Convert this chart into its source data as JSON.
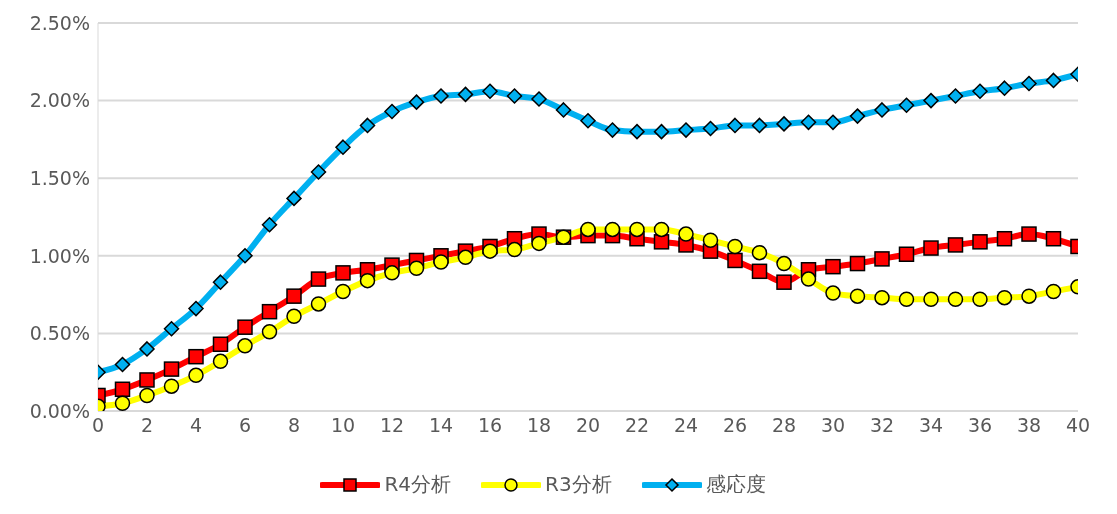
{
  "chart_data": {
    "type": "line",
    "x": [
      0,
      1,
      2,
      3,
      4,
      5,
      6,
      7,
      8,
      9,
      10,
      11,
      12,
      13,
      14,
      15,
      16,
      17,
      18,
      19,
      20,
      21,
      22,
      23,
      24,
      25,
      26,
      27,
      28,
      29,
      30,
      31,
      32,
      33,
      34,
      35,
      36,
      37,
      38,
      39,
      40
    ],
    "series": [
      {
        "name": "R4分析",
        "color": "#ff0000",
        "marker": "square",
        "values": [
          0.1,
          0.14,
          0.2,
          0.27,
          0.35,
          0.43,
          0.54,
          0.64,
          0.74,
          0.85,
          0.89,
          0.91,
          0.94,
          0.97,
          1.0,
          1.03,
          1.06,
          1.11,
          1.14,
          1.12,
          1.13,
          1.13,
          1.11,
          1.09,
          1.07,
          1.03,
          0.97,
          0.9,
          0.83,
          0.91,
          0.93,
          0.95,
          0.98,
          1.01,
          1.05,
          1.07,
          1.09,
          1.11,
          1.14,
          1.11,
          1.06
        ]
      },
      {
        "name": "R3分析",
        "color": "#ffff00",
        "marker": "circle",
        "values": [
          0.03,
          0.05,
          0.1,
          0.16,
          0.23,
          0.32,
          0.42,
          0.51,
          0.61,
          0.69,
          0.77,
          0.84,
          0.89,
          0.92,
          0.96,
          0.99,
          1.03,
          1.04,
          1.08,
          1.12,
          1.17,
          1.17,
          1.17,
          1.17,
          1.14,
          1.1,
          1.06,
          1.02,
          0.95,
          0.85,
          0.76,
          0.74,
          0.73,
          0.72,
          0.72,
          0.72,
          0.72,
          0.73,
          0.74,
          0.77,
          0.8
        ]
      },
      {
        "name": "感応度",
        "color": "#00b0f0",
        "marker": "diamond",
        "values": [
          0.25,
          0.3,
          0.4,
          0.53,
          0.66,
          0.83,
          1.0,
          1.2,
          1.37,
          1.54,
          1.7,
          1.84,
          1.93,
          1.99,
          2.03,
          2.04,
          2.06,
          2.03,
          2.01,
          1.94,
          1.87,
          1.81,
          1.8,
          1.8,
          1.81,
          1.82,
          1.84,
          1.84,
          1.85,
          1.86,
          1.86,
          1.9,
          1.94,
          1.97,
          2.0,
          2.03,
          2.06,
          2.08,
          2.11,
          2.13,
          2.17
        ]
      }
    ],
    "xlim": [
      0,
      40
    ],
    "xticks": [
      0,
      2,
      4,
      6,
      8,
      10,
      12,
      14,
      16,
      18,
      20,
      22,
      24,
      26,
      28,
      30,
      32,
      34,
      36,
      38,
      40
    ],
    "ylim": [
      0,
      2.5
    ],
    "yticks": [
      {
        "value": 0,
        "label": "0.00%"
      },
      {
        "value": 0.5,
        "label": "0.50%"
      },
      {
        "value": 1,
        "label": "1.00%"
      },
      {
        "value": 1.5,
        "label": "1.50%"
      },
      {
        "value": 2,
        "label": "2.00%"
      },
      {
        "value": 2.5,
        "label": "2.50%"
      }
    ],
    "grid": "y",
    "legend": "bottom",
    "line_style": "solid"
  }
}
